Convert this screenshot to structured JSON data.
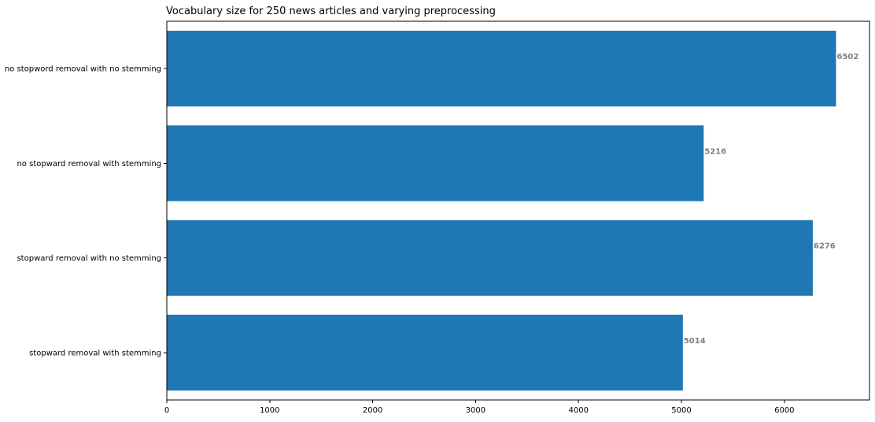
{
  "chart_data": {
    "type": "bar",
    "orientation": "horizontal",
    "title": "Vocabulary size for 250 news articles and varying preprocessing",
    "xlabel": "",
    "ylabel": "",
    "categories": [
      "no stopword removal with no stemming",
      "no stopward removal with stemming",
      "stopward removal with no stemming",
      "stopward removal with stemming"
    ],
    "values": [
      6502,
      5216,
      6276,
      5014
    ],
    "data_labels": [
      "6502",
      "5216",
      "6276",
      "5014"
    ],
    "xlim": [
      0,
      6827
    ],
    "xticks": [
      0,
      1000,
      2000,
      3000,
      4000,
      5000,
      6000
    ],
    "xtick_labels": [
      "0",
      "1000",
      "2000",
      "3000",
      "4000",
      "5000",
      "6000"
    ],
    "grid": false,
    "legend": "none",
    "colors": {
      "bar": "#1f77b4",
      "value_label": "#7f7f7f"
    }
  }
}
